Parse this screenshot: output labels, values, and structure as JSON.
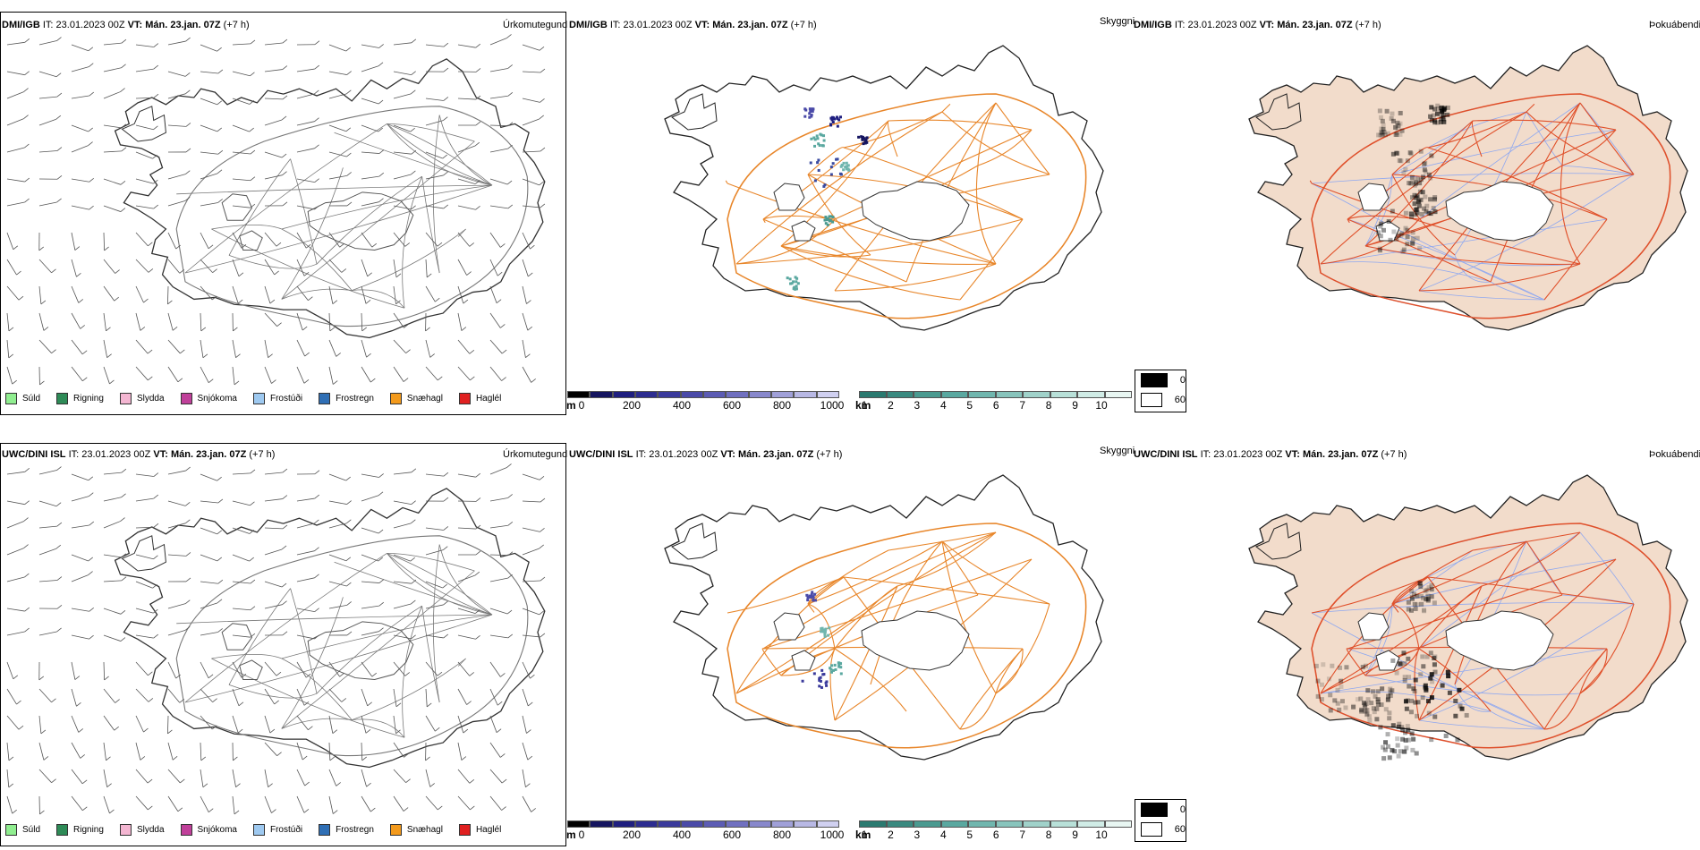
{
  "rows": [
    {
      "model": "DMI/IGB",
      "it_label": "IT:",
      "it_value": "23.01.2023 00Z",
      "vt_label": "VT:",
      "vt_value": "Mán. 23.jan. 07Z",
      "lead": "(+7 h)"
    },
    {
      "model": "UWC/DINI ISL",
      "it_label": "IT:",
      "it_value": "23.01.2023 00Z",
      "vt_label": "VT:",
      "vt_value": "Mán. 23.jan. 07Z",
      "lead": "(+7 h)"
    }
  ],
  "panels": {
    "precip_type": {
      "title": "Úrkomutegund"
    },
    "visibility": {
      "title": "Skyggni"
    },
    "fog": {
      "title": "Þokuábendi"
    }
  },
  "precip_legend": [
    {
      "label": "Súld",
      "color": "#90ee90"
    },
    {
      "label": "Rigning",
      "color": "#2e8b57"
    },
    {
      "label": "Slydda",
      "color": "#f4b6d2"
    },
    {
      "label": "Snjókoma",
      "color": "#c0409a"
    },
    {
      "label": "Frostúði",
      "color": "#9ec9f0"
    },
    {
      "label": "Frostregn",
      "color": "#2f6fb5"
    },
    {
      "label": "Snæhagl",
      "color": "#f39a1c"
    },
    {
      "label": "Haglél",
      "color": "#e02020"
    }
  ],
  "vis_m_scale": {
    "unit": "m",
    "ticks": [
      "0",
      "200",
      "400",
      "600",
      "800",
      "1000"
    ],
    "colors": [
      "#000000",
      "#151560",
      "#1f1f80",
      "#2c2c90",
      "#3a3a9c",
      "#4a4aa8",
      "#5c5cb4",
      "#7070c0",
      "#8888cc",
      "#a0a0d8",
      "#b8b8e4",
      "#d0d0f0"
    ]
  },
  "vis_km_scale": {
    "unit": "km",
    "ticks": [
      "1",
      "2",
      "3",
      "4",
      "5",
      "6",
      "7",
      "8",
      "9",
      "10"
    ],
    "colors": [
      "#2a7a70",
      "#3a8a80",
      "#4a9a90",
      "#5aa8a0",
      "#70b6ae",
      "#88c4bc",
      "#a0d2ca",
      "#b8e0d8",
      "#d0ece6",
      "#e8f6f2"
    ]
  },
  "fog_legend": [
    {
      "label": "0",
      "color": "#000000"
    },
    {
      "label": "60",
      "color": "#ffffff"
    }
  ],
  "colors": {
    "roads": "#e8862a",
    "fog_land": "#f2dccb",
    "rivers": "#8fa8f0",
    "fog_roads": "#e0502a"
  }
}
